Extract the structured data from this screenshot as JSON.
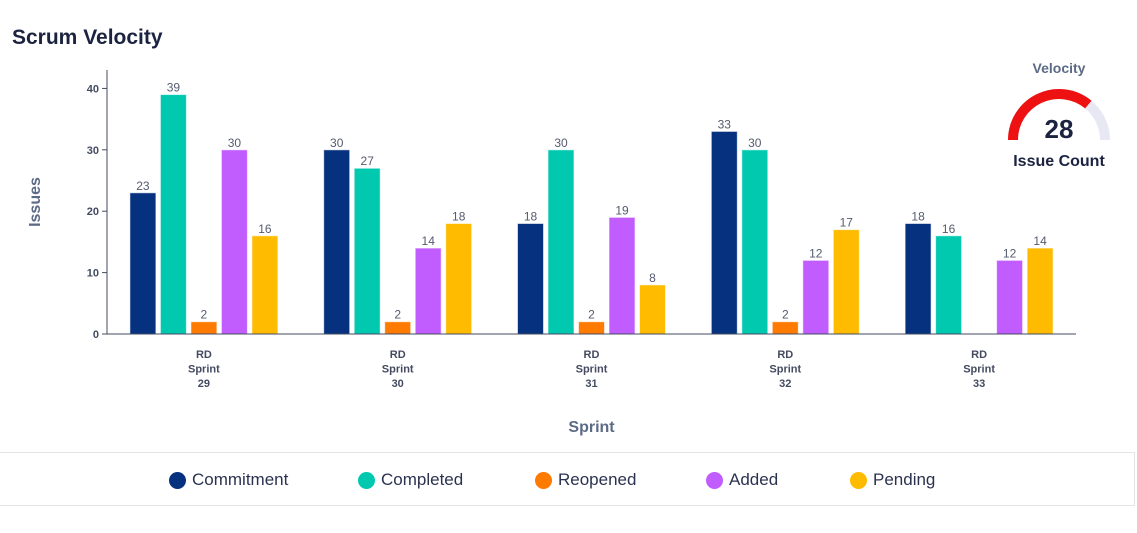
{
  "page": {
    "title": "Scrum Velocity"
  },
  "chart_data": {
    "type": "bar",
    "xlabel": "Sprint",
    "ylabel": "Issues",
    "ylim": [
      0,
      43
    ],
    "yticks": [
      0,
      10,
      20,
      30,
      40
    ],
    "categories": [
      [
        "RD",
        "Sprint",
        "29"
      ],
      [
        "RD",
        "Sprint",
        "30"
      ],
      [
        "RD",
        "Sprint",
        "31"
      ],
      [
        "RD",
        "Sprint",
        "32"
      ],
      [
        "RD",
        "Sprint",
        "33"
      ]
    ],
    "series": [
      {
        "name": "Commitment",
        "color": "#05317f",
        "values": [
          23,
          30,
          18,
          33,
          18
        ]
      },
      {
        "name": "Completed",
        "color": "#00c9b0",
        "values": [
          39,
          27,
          30,
          30,
          16
        ]
      },
      {
        "name": "Reopened",
        "color": "#ff7a00",
        "values": [
          2,
          2,
          2,
          2,
          null
        ]
      },
      {
        "name": "Added",
        "color": "#c15cff",
        "values": [
          30,
          14,
          19,
          12,
          12
        ]
      },
      {
        "name": "Pending",
        "color": "#ffbb00",
        "values": [
          16,
          18,
          8,
          17,
          14
        ]
      }
    ],
    "grid": false,
    "legend": "bottom"
  },
  "gauge": {
    "title": "Velocity",
    "value": 28,
    "value_label": "28",
    "subtitle": "Issue Count",
    "fill_fraction": 0.72,
    "color": "#ee1111",
    "track_color": "#e8e8f5"
  }
}
